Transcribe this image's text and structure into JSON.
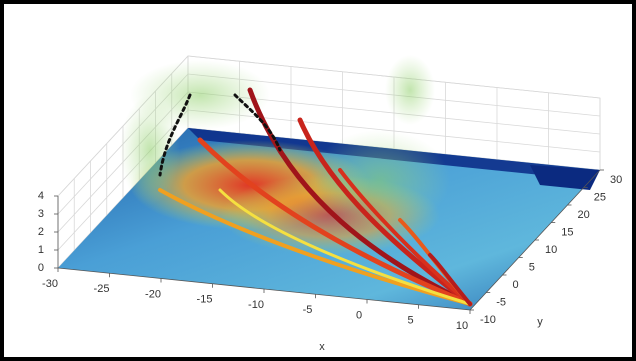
{
  "chart_data": {
    "type": "surface3d",
    "xlabel": "x",
    "ylabel": "y",
    "xlim": [
      -30,
      10
    ],
    "ylim": [
      -10,
      30
    ],
    "zlim": [
      0,
      4
    ],
    "xticks": [
      -30,
      -25,
      -20,
      -15,
      -10,
      -5,
      0,
      5,
      10
    ],
    "yticks": [
      -10,
      -5,
      0,
      5,
      10,
      15,
      20,
      25,
      30
    ],
    "zticks": [
      0,
      1,
      2,
      3,
      4
    ],
    "grid": true
  }
}
